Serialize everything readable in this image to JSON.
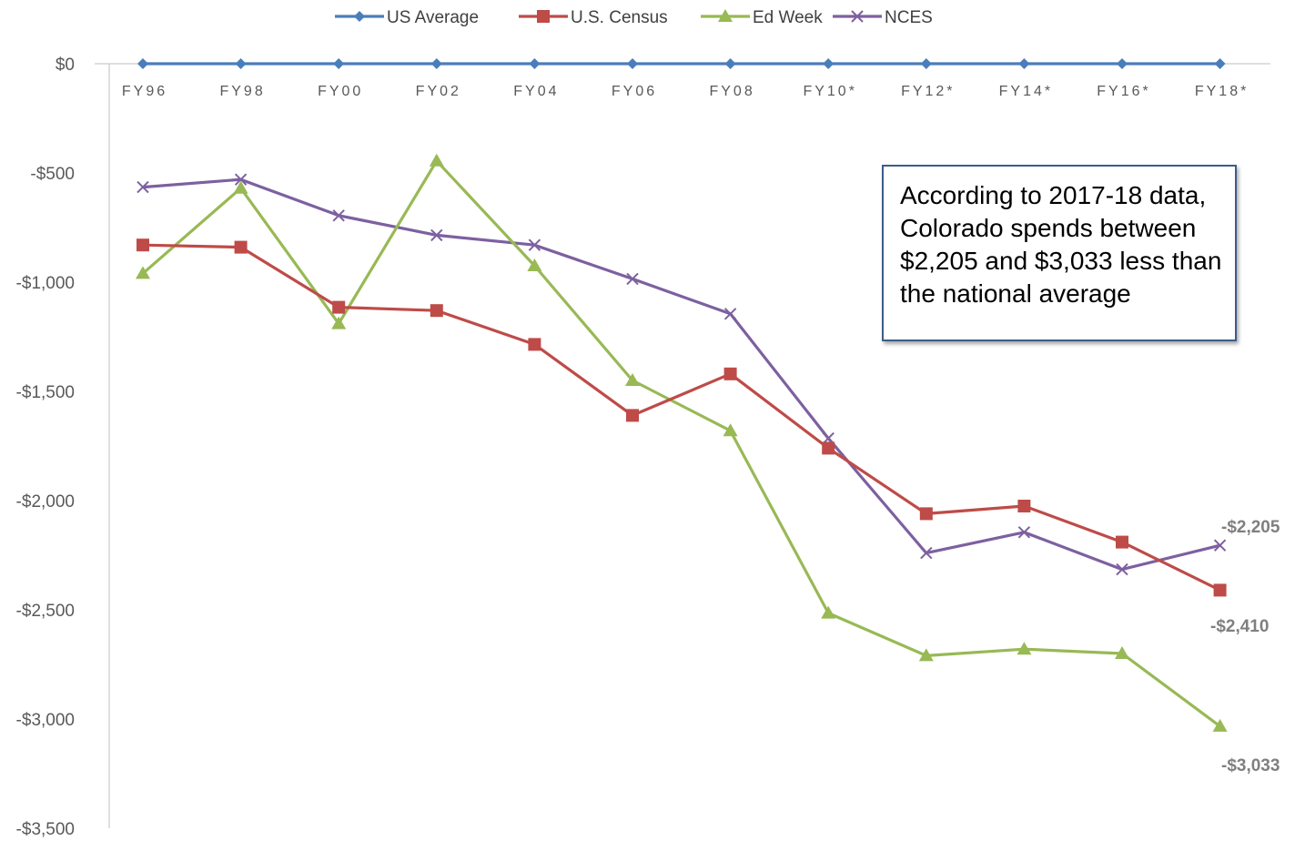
{
  "chart_data": {
    "type": "line",
    "title": "",
    "xlabel": "",
    "ylabel": "",
    "categories": [
      "FY96",
      "FY98",
      "FY00",
      "FY02",
      "FY04",
      "FY06",
      "FY08",
      "FY10*",
      "FY12*",
      "FY14*",
      "FY16*",
      "FY18*"
    ],
    "y_ticks": [
      "$0",
      "-$500",
      "-$1,000",
      "-$1,500",
      "-$2,000",
      "-$2,500",
      "-$3,000",
      "-$3,500"
    ],
    "ylim": [
      -3500,
      0
    ],
    "legend_position": "top",
    "series": [
      {
        "name": "US Average",
        "color": "#4a7ebb",
        "marker": "diamond",
        "values": [
          0,
          0,
          0,
          0,
          0,
          0,
          0,
          0,
          0,
          0,
          0,
          0
        ]
      },
      {
        "name": "U.S. Census",
        "color": "#be4b48",
        "marker": "square",
        "values": [
          -830,
          -840,
          -1115,
          -1130,
          -1285,
          -1610,
          -1420,
          -1760,
          -2060,
          -2025,
          -2190,
          -2410
        ]
      },
      {
        "name": "Ed Week",
        "color": "#98b954",
        "marker": "triangle",
        "values": [
          -960,
          -570,
          -1190,
          -445,
          -925,
          -1450,
          -1680,
          -2515,
          -2710,
          -2680,
          -2700,
          -3033
        ]
      },
      {
        "name": "NCES",
        "color": "#7d60a0",
        "marker": "x",
        "values": [
          -565,
          -530,
          -695,
          -785,
          -830,
          -985,
          -1145,
          -1715,
          -2240,
          -2145,
          -2315,
          -2205
        ]
      }
    ],
    "end_labels": [
      "-$2,205",
      "-$2,410",
      "-$3,033"
    ],
    "annotation": "According to 2017-18 data, Colorado spends between $2,205 and $3,033 less than the national average"
  }
}
